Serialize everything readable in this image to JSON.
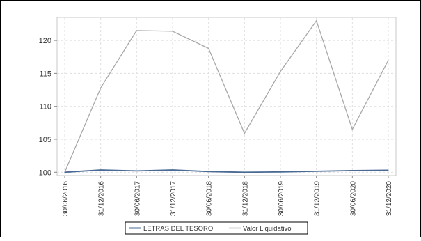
{
  "chart_data": {
    "type": "line",
    "categories": [
      "30/06/2016",
      "31/12/2016",
      "30/06/2017",
      "31/12/2017",
      "30/06/2018",
      "31/12/2018",
      "30/06/2019",
      "31/12/2019",
      "30/06/2020",
      "31/12/2020"
    ],
    "series": [
      {
        "name": "LETRAS DEL TESORO",
        "color": "#4a6a96",
        "values": [
          100.0,
          100.35,
          100.2,
          100.35,
          100.1,
          100.0,
          100.05,
          100.15,
          100.25,
          100.3
        ]
      },
      {
        "name": "Valor Liquidativo",
        "color": "#a8a8a8",
        "values": [
          100.0,
          112.8,
          121.5,
          121.4,
          118.8,
          105.9,
          115.3,
          123.0,
          106.5,
          117.0
        ]
      }
    ],
    "y_ticks": [
      100,
      105,
      110,
      115,
      120
    ],
    "ylim": [
      99.5,
      123.5
    ],
    "grid": true,
    "legend": "bottom"
  }
}
